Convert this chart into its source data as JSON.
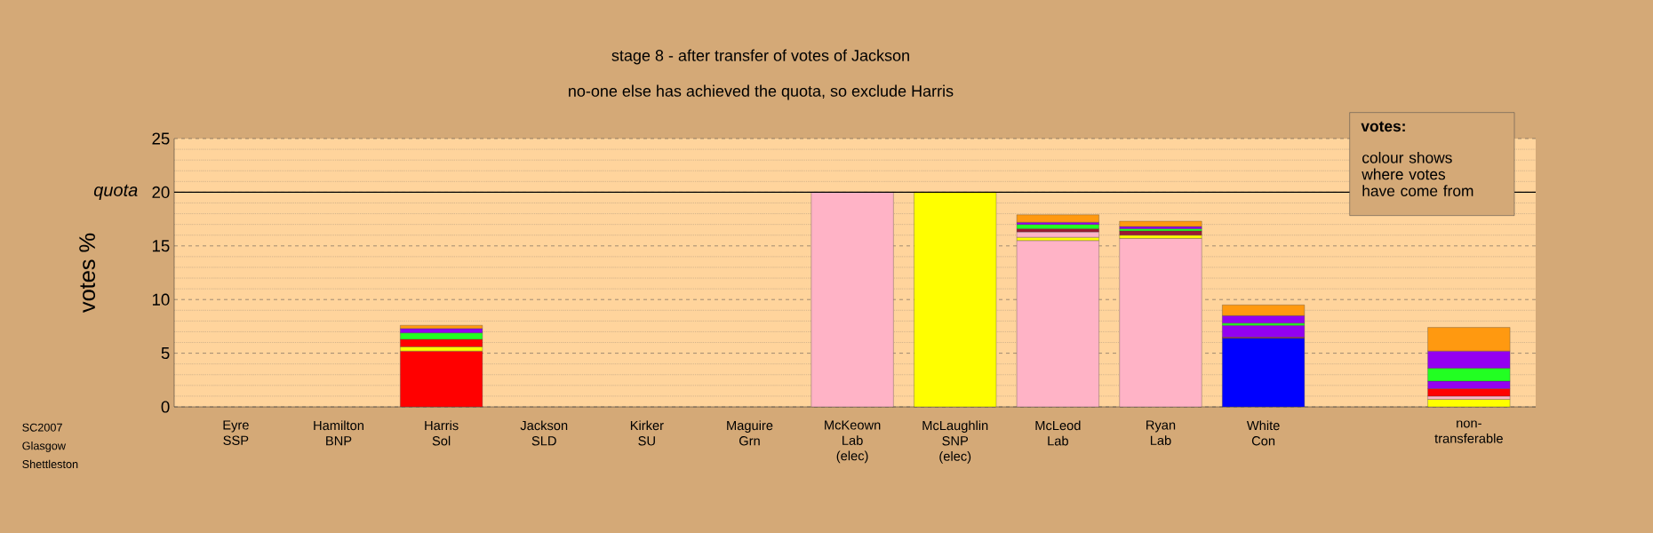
{
  "chart_data": {
    "type": "bar",
    "stacked": true,
    "title": "stage 8 - after transfer of votes of Jackson",
    "subtitle": "no-one else has achieved the quota, so exclude Harris",
    "ylabel": "votes %",
    "categories": [
      "Eyre\nSSP",
      "Hamilton\nBNP",
      "Harris\nSol",
      "Jackson\nSLD",
      "Kirker\nSU",
      "Maguire\nGrn",
      "McKeown\nLab\n(elec)",
      "McLaughlin\nSNP\n(elec)",
      "McLeod\nLab",
      "Ryan\nLab",
      "White\nCon",
      null,
      "non-\ntransferable"
    ],
    "series": [
      {
        "values": [
          null,
          null,
          5.2,
          null,
          null,
          null,
          20,
          20,
          15.5,
          15.7,
          6.4,
          null,
          0.7
        ],
        "colors": [
          null,
          null,
          "#ff0000",
          null,
          null,
          null,
          "#ffb3c6",
          "#ffff00",
          "#ffb3c6",
          "#ffb3c6",
          "#0000ff",
          null,
          "#ffff00"
        ]
      },
      {
        "values": [
          null,
          null,
          0.4,
          null,
          null,
          null,
          null,
          null,
          0.3,
          0.3,
          0.1,
          null,
          0.3
        ],
        "colors": [
          null,
          null,
          "#ffff00",
          null,
          null,
          null,
          null,
          null,
          "#ffff00",
          "#ffff00",
          "#9b1b30",
          null,
          "#ffb3c6"
        ]
      },
      {
        "values": [
          null,
          null,
          0.7,
          null,
          null,
          null,
          null,
          null,
          0.5,
          0.4,
          1.1,
          null,
          0.7
        ],
        "colors": [
          null,
          null,
          "#ff0000",
          null,
          null,
          null,
          null,
          null,
          "#ffb3c6",
          "#9b1b30",
          "#9400f0",
          null,
          "#ff0000"
        ]
      },
      {
        "values": [
          null,
          null,
          0.6,
          null,
          null,
          null,
          null,
          null,
          0.3,
          0.2,
          0.2,
          null,
          0.7
        ],
        "colors": [
          null,
          null,
          "#22ff22",
          null,
          null,
          null,
          null,
          null,
          "#9b1b30",
          "#22ff22",
          "#22ff22",
          null,
          "#9400f0"
        ]
      },
      {
        "values": [
          null,
          null,
          0.4,
          null,
          null,
          null,
          null,
          null,
          0.4,
          0.2,
          0.7,
          null,
          1.2
        ],
        "colors": [
          null,
          null,
          "#9400f0",
          null,
          null,
          null,
          null,
          null,
          "#22ff22",
          "#9400f0",
          "#9400f0",
          null,
          "#22ff22"
        ]
      },
      {
        "values": [
          null,
          null,
          0.3,
          null,
          null,
          null,
          null,
          null,
          0.2,
          0.5,
          1.0,
          null,
          1.6
        ],
        "colors": [
          null,
          null,
          "#ff9910",
          null,
          null,
          null,
          null,
          null,
          "#9400f0",
          "#ff9910",
          "#ff9910",
          null,
          "#9400f0"
        ]
      },
      {
        "values": [
          null,
          null,
          null,
          null,
          null,
          null,
          null,
          null,
          0.7,
          null,
          null,
          null,
          2.2
        ],
        "colors": [
          null,
          null,
          null,
          null,
          null,
          null,
          null,
          null,
          "#ff9910",
          null,
          null,
          null,
          "#ff9910"
        ]
      }
    ],
    "ylim": [
      0,
      25
    ],
    "yticks": [
      0,
      5,
      10,
      15,
      20,
      25
    ],
    "grid": "y",
    "ref_lines": [
      {
        "axis": "y",
        "value": 20,
        "label": "quota",
        "color": "#000000"
      }
    ],
    "annotations": [
      "votes:",
      "colour shows where votes have come from",
      "SC2007\nGlasgow\nShettleston"
    ]
  }
}
